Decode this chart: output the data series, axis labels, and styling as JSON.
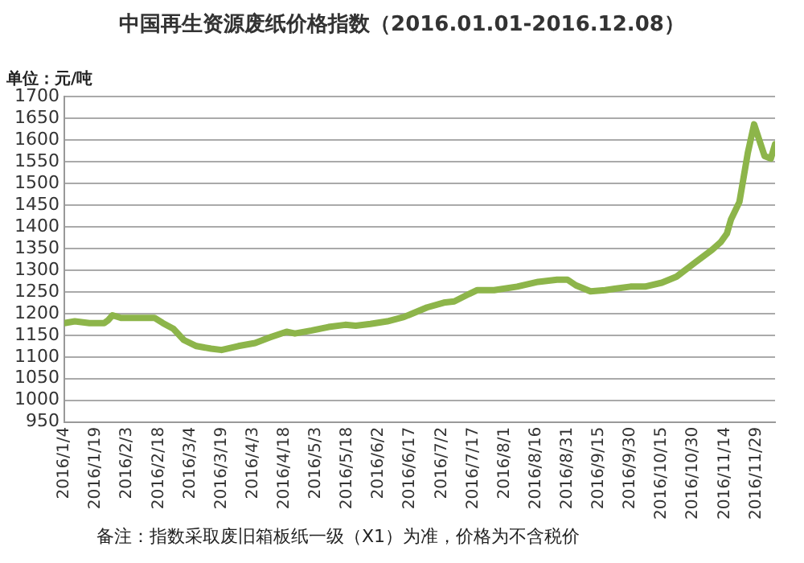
{
  "chart_data": {
    "type": "line",
    "title": "中国再生资源废纸价格指数（2016.01.01-2016.12.08）",
    "ylabel": "单位：元/吨",
    "annotations": [
      "备注：指数采取废旧箱板纸一级（X1）为准，价格为不含税价"
    ],
    "series": [
      {
        "color": "#8db54a",
        "x": [
          "2016-01-04",
          "2016-01-09",
          "2016-01-16",
          "2016-01-23",
          "2016-01-25",
          "2016-01-27",
          "2016-01-31",
          "2016-02-16",
          "2016-02-20",
          "2016-02-25",
          "2016-03-01",
          "2016-03-07",
          "2016-03-14",
          "2016-03-19",
          "2016-03-27",
          "2016-04-04",
          "2016-04-11",
          "2016-04-19",
          "2016-04-23",
          "2016-05-01",
          "2016-05-09",
          "2016-05-17",
          "2016-05-22",
          "2016-05-29",
          "2016-06-06",
          "2016-06-14",
          "2016-06-25",
          "2016-07-03",
          "2016-07-08",
          "2016-07-15",
          "2016-07-19",
          "2016-07-27",
          "2016-08-07",
          "2016-08-17",
          "2016-08-26",
          "2016-08-31",
          "2016-09-04",
          "2016-09-11",
          "2016-09-18",
          "2016-09-30",
          "2016-10-07",
          "2016-10-15",
          "2016-10-22",
          "2016-10-31",
          "2016-11-08",
          "2016-11-12",
          "2016-11-15",
          "2016-11-17",
          "2016-11-21",
          "2016-11-25",
          "2016-11-28",
          "2016-12-03",
          "2016-12-06",
          "2016-12-08"
        ],
        "values": [
          1178,
          1182,
          1178,
          1178,
          1185,
          1196,
          1190,
          1190,
          1178,
          1165,
          1139,
          1125,
          1119,
          1116,
          1125,
          1132,
          1145,
          1158,
          1154,
          1161,
          1169,
          1174,
          1172,
          1176,
          1182,
          1192,
          1214,
          1225,
          1228,
          1245,
          1254,
          1254,
          1262,
          1273,
          1278,
          1278,
          1265,
          1251,
          1254,
          1262,
          1262,
          1271,
          1285,
          1318,
          1347,
          1364,
          1384,
          1417,
          1457,
          1570,
          1636,
          1563,
          1557,
          1590
        ]
      }
    ],
    "xlim": [
      "2016-01-04",
      "2016-12-08"
    ],
    "xticks": [
      {
        "value": "2016-01-04",
        "label": "2016/1/4"
      },
      {
        "value": "2016-01-19",
        "label": "2016/1/19"
      },
      {
        "value": "2016-02-03",
        "label": "2016/2/3"
      },
      {
        "value": "2016-02-18",
        "label": "2016/2/18"
      },
      {
        "value": "2016-03-04",
        "label": "2016/3/4"
      },
      {
        "value": "2016-03-19",
        "label": "2016/3/19"
      },
      {
        "value": "2016-04-03",
        "label": "2016/4/3"
      },
      {
        "value": "2016-04-18",
        "label": "2016/4/18"
      },
      {
        "value": "2016-05-03",
        "label": "2016/5/3"
      },
      {
        "value": "2016-05-18",
        "label": "2016/5/18"
      },
      {
        "value": "2016-06-02",
        "label": "2016/6/2"
      },
      {
        "value": "2016-06-17",
        "label": "2016/6/17"
      },
      {
        "value": "2016-07-02",
        "label": "2016/7/2"
      },
      {
        "value": "2016-07-17",
        "label": "2016/7/17"
      },
      {
        "value": "2016-08-01",
        "label": "2016/8/1"
      },
      {
        "value": "2016-08-16",
        "label": "2016/8/16"
      },
      {
        "value": "2016-08-31",
        "label": "2016/8/31"
      },
      {
        "value": "2016-09-15",
        "label": "2016/9/15"
      },
      {
        "value": "2016-09-30",
        "label": "2016/9/30"
      },
      {
        "value": "2016-10-15",
        "label": "2016/10/15"
      },
      {
        "value": "2016-10-30",
        "label": "2016/10/30"
      },
      {
        "value": "2016-11-14",
        "label": "2016/11/14"
      },
      {
        "value": "2016-11-29",
        "label": "2016/11/29"
      }
    ],
    "ylim": [
      950,
      1700
    ],
    "yticks": [
      950,
      1000,
      1050,
      1100,
      1150,
      1200,
      1250,
      1300,
      1350,
      1400,
      1450,
      1500,
      1550,
      1600,
      1650,
      1700
    ],
    "grid": "y",
    "legend": false,
    "marker": "none",
    "line_style": "solid"
  }
}
